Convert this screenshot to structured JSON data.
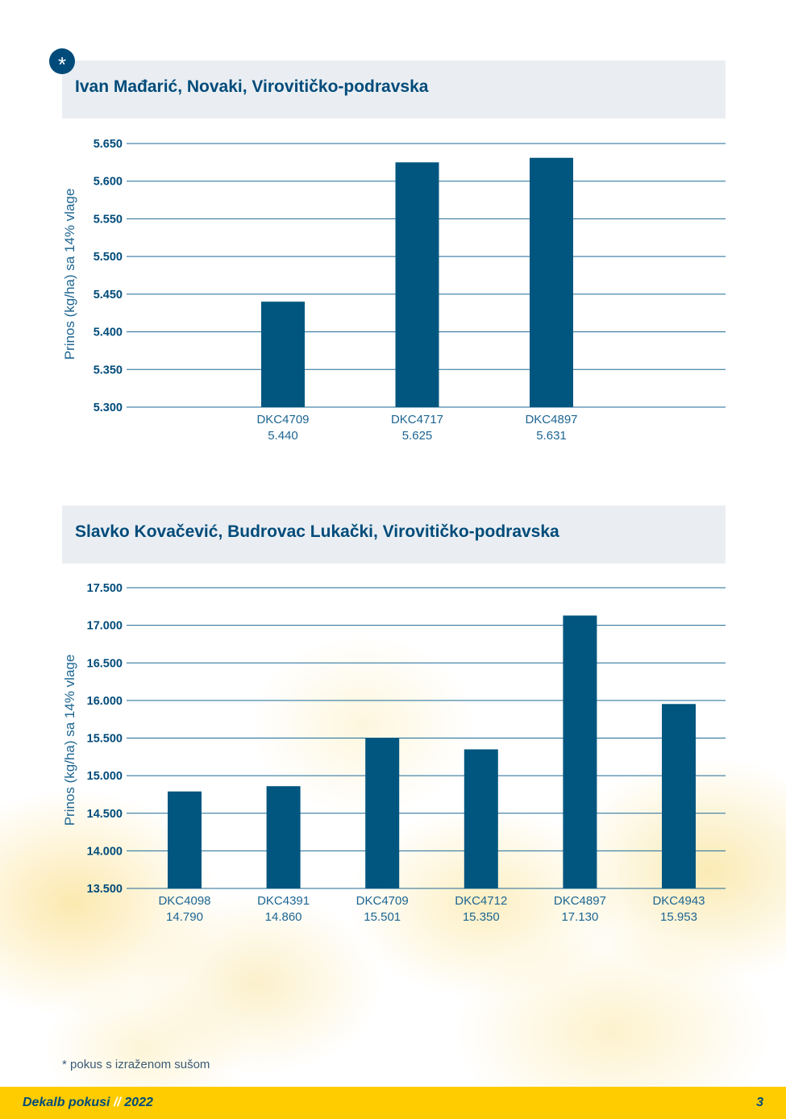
{
  "badge": "*",
  "charts": [
    {
      "title": "Ivan Mađarić, Novaki, Virovitičko-podravska",
      "ylabel": "Prinos (kg/ha) sa 14% vlage",
      "yticks": [
        "5.650",
        "5.600",
        "5.550",
        "5.500",
        "5.450",
        "5.400",
        "5.350",
        "5.300"
      ],
      "labels": [
        "DKC4709",
        "DKC4717",
        "DKC4897"
      ],
      "value_labels": [
        "5.440",
        "5.625",
        "5.631"
      ]
    },
    {
      "title": "Slavko Kovačević, Budrovac Lukački, Virovitičko-podravska",
      "ylabel": "Prinos (kg/ha) sa 14% vlage",
      "yticks": [
        "17.500",
        "17.000",
        "16.500",
        "16.000",
        "15.500",
        "15.000",
        "14.500",
        "14.000",
        "13.500"
      ],
      "labels": [
        "DKC4098",
        "DKC4391",
        "DKC4709",
        "DKC4712",
        "DKC4897",
        "DKC4943"
      ],
      "value_labels": [
        "14.790",
        "14.860",
        "15.501",
        "15.350",
        "17.130",
        "15.953"
      ]
    }
  ],
  "chart_data": [
    {
      "type": "bar",
      "title": "Ivan Mađarić, Novaki, Virovitičko-podravska",
      "categories": [
        "DKC4709",
        "DKC4717",
        "DKC4897"
      ],
      "values": [
        5440,
        5625,
        5631
      ],
      "ylabel": "Prinos (kg/ha) sa 14% vlage",
      "ylim": [
        5300,
        5650
      ],
      "grid": true,
      "color": "#00567f"
    },
    {
      "type": "bar",
      "title": "Slavko Kovačević, Budrovac Lukački, Virovitičko-podravska",
      "categories": [
        "DKC4098",
        "DKC4391",
        "DKC4709",
        "DKC4712",
        "DKC4897",
        "DKC4943"
      ],
      "values": [
        14790,
        14860,
        15501,
        15350,
        17130,
        15953
      ],
      "ylabel": "Prinos (kg/ha) sa 14% vlage",
      "ylim": [
        13500,
        17500
      ],
      "grid": true,
      "color": "#00567f"
    }
  ],
  "footnote": "* pokus s izraženom sušom",
  "footer": {
    "brand": "Dekalb pokusi",
    "separator": "//",
    "year": "2022",
    "page": "3"
  }
}
